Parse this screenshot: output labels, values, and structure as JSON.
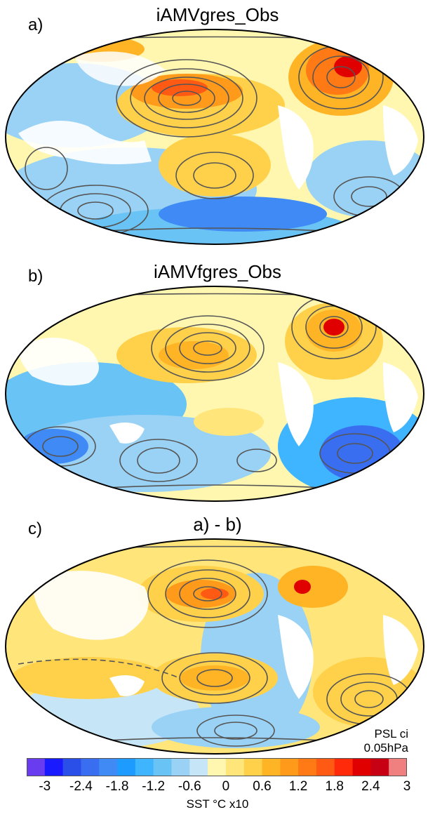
{
  "panels": [
    {
      "letter": "a)",
      "title": "iAMVgres_Obs"
    },
    {
      "letter": "b)",
      "title": "iAMVfgres_Obs"
    },
    {
      "letter": "c)",
      "title": "a) - b)"
    }
  ],
  "contour_note": {
    "line1": "PSL ci",
    "line2": "0.05hPa"
  },
  "colorbar": {
    "label": "SST °C x10",
    "tick_labels": [
      "-3",
      "-2.4",
      "-1.8",
      "-1.2",
      "-0.6",
      "0",
      "0.6",
      "1.2",
      "1.8",
      "2.4",
      "3"
    ],
    "colors": [
      "#6a3cf0",
      "#1a1aff",
      "#2a4ee8",
      "#3a6ef0",
      "#3f8af5",
      "#1e9bff",
      "#3fb4ff",
      "#6ac3f5",
      "#9ad2f5",
      "#c6e6f7",
      "#fff7b0",
      "#ffe57a",
      "#ffd14a",
      "#ffb426",
      "#ff9a1a",
      "#ff7a14",
      "#ff5a14",
      "#ff2a0a",
      "#e00000",
      "#c80014",
      "#f08080"
    ]
  }
}
